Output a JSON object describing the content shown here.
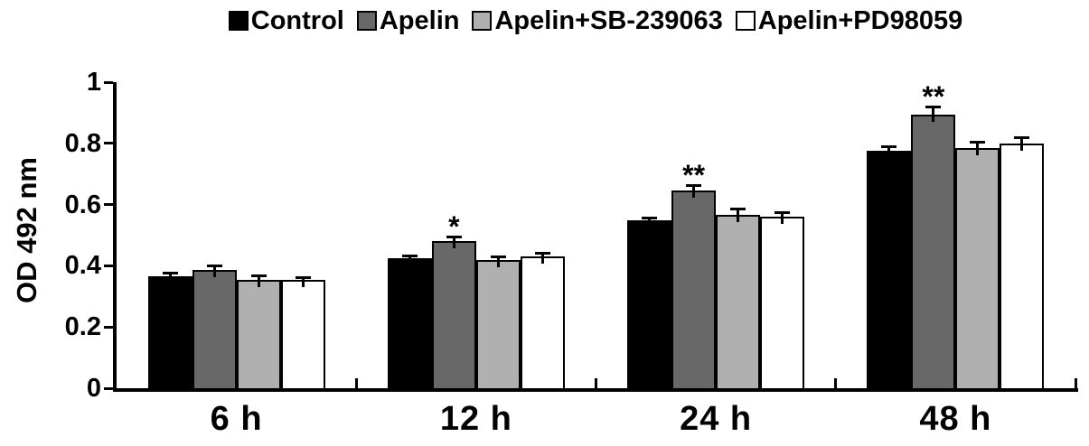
{
  "chart_data": {
    "type": "bar",
    "title": "",
    "ylabel": "OD 492 nm",
    "xlabel": "",
    "ylim": [
      0,
      1
    ],
    "yticks": [
      0,
      0.2,
      0.4,
      0.6,
      0.8,
      1
    ],
    "ytick_labels": [
      "0",
      "0.2",
      "0.4",
      "0.6",
      "0.8",
      "1"
    ],
    "categories": [
      "6 h",
      "12 h",
      "24 h",
      "48 h"
    ],
    "series": [
      {
        "name": "Control",
        "color": "#000000",
        "values": [
          0.365,
          0.425,
          0.55,
          0.775
        ],
        "errors": [
          0.01,
          0.008,
          0.006,
          0.015
        ]
      },
      {
        "name": "Apelin",
        "color": "#686868",
        "values": [
          0.385,
          0.48,
          0.645,
          0.895
        ],
        "errors": [
          0.015,
          0.015,
          0.018,
          0.025
        ]
      },
      {
        "name": "Apelin+SB-239063",
        "color": "#b0b0b0",
        "values": [
          0.355,
          0.42,
          0.565,
          0.785
        ],
        "errors": [
          0.012,
          0.008,
          0.022,
          0.02
        ]
      },
      {
        "name": "Apelin+PD98059",
        "color": "#ffffff",
        "values": [
          0.355,
          0.43,
          0.56,
          0.8
        ],
        "errors": [
          0.006,
          0.01,
          0.015,
          0.02
        ]
      }
    ],
    "error_bars": true,
    "grid": false,
    "legend_position": "top",
    "annotations": [
      {
        "category": "12 h",
        "series": "Apelin",
        "text": "*"
      },
      {
        "category": "24 h",
        "series": "Apelin",
        "text": "**"
      },
      {
        "category": "48 h",
        "series": "Apelin",
        "text": "**"
      }
    ],
    "axis_color": "#000000"
  }
}
